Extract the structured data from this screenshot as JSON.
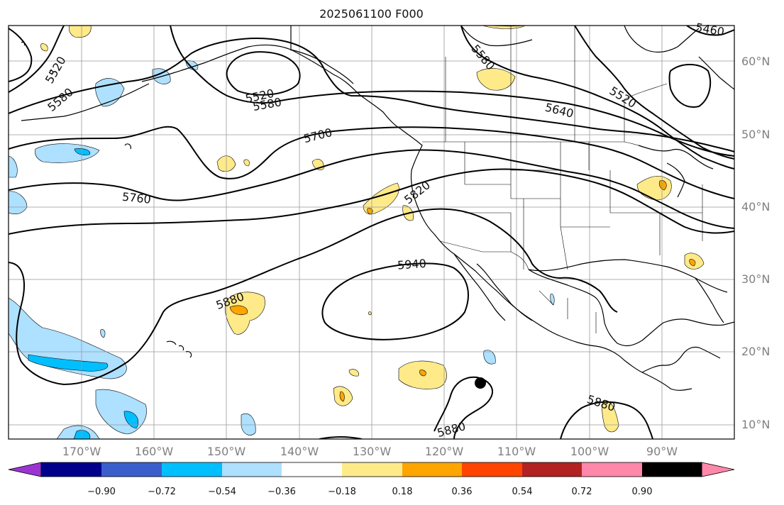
{
  "title": "2025061100 F000",
  "latitude_labels": [
    "60°N",
    "50°N",
    "40°N",
    "30°N",
    "20°N",
    "10°N"
  ],
  "longitude_labels": [
    "170°W",
    "160°W",
    "150°W",
    "140°W",
    "130°W",
    "120°W",
    "110°W",
    "100°W",
    "90°W"
  ],
  "contour_labels": [
    "5460",
    "5520",
    "5580",
    "5520",
    "5580",
    "5580",
    "5520",
    "5640",
    "5700",
    "5760",
    "5820",
    "5940",
    "5880",
    "5880",
    "5880"
  ],
  "colorbar": {
    "colors": [
      "#9a35d2",
      "#00008b",
      "#3a5fcd",
      "#00bfff",
      "#aee0ff",
      "#ffffff",
      "#ffea8a",
      "#ffa500",
      "#ff4500",
      "#b22222",
      "#ff88aa"
    ],
    "tick_labels": [
      "−0.90",
      "−0.72",
      "−0.54",
      "−0.36",
      "−0.18",
      "0.18",
      "0.36",
      "0.54",
      "0.72",
      "0.90"
    ]
  },
  "colors": {
    "contour": "#000000",
    "grid": "#999999",
    "coast": "#000000",
    "positive_light": "#ffea8a",
    "positive_mid": "#ffa500",
    "negative_light": "#aee0ff",
    "negative_mid": "#00bfff"
  }
}
